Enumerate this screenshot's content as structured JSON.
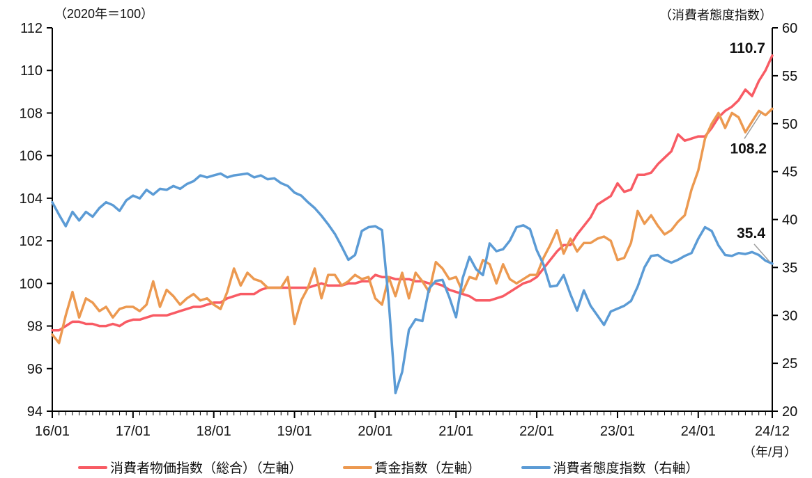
{
  "header": {
    "left_axis_unit_label": "（2020年＝100）",
    "right_axis_unit_label": "（消費者態度指数）",
    "x_axis_unit_label": "（年/月）"
  },
  "chart_data": {
    "type": "line",
    "title": "",
    "x_start": "2016/01",
    "x_end": "2024/12",
    "x_frequency": "monthly",
    "n_points": 108,
    "x_tick_labels": [
      "16/01",
      "17/01",
      "18/01",
      "19/01",
      "20/01",
      "21/01",
      "22/01",
      "23/01",
      "24/01",
      "24/12"
    ],
    "left_axis": {
      "label": "（2020年＝100）",
      "min": 94,
      "max": 112,
      "step": 2
    },
    "right_axis": {
      "label": "（消費者態度指数）",
      "min": 20,
      "max": 60,
      "step": 5
    },
    "grid": false,
    "legend_position": "bottom",
    "series": [
      {
        "key": "cpi",
        "name": "消費者物価指数（総合）（左軸）",
        "axis": "left",
        "color": "#f85b64",
        "end_label": "110.7",
        "values": [
          97.8,
          97.8,
          98.0,
          98.2,
          98.2,
          98.1,
          98.1,
          98.0,
          98.0,
          98.1,
          98.0,
          98.2,
          98.3,
          98.3,
          98.4,
          98.5,
          98.5,
          98.5,
          98.6,
          98.7,
          98.8,
          98.9,
          98.9,
          99.0,
          99.1,
          99.1,
          99.3,
          99.4,
          99.5,
          99.5,
          99.5,
          99.7,
          99.8,
          99.8,
          99.8,
          99.8,
          99.8,
          99.8,
          99.8,
          99.9,
          100.0,
          99.9,
          99.9,
          99.9,
          100.0,
          100.0,
          100.1,
          100.1,
          100.4,
          100.3,
          100.3,
          100.2,
          100.2,
          100.2,
          100.1,
          100.1,
          100.0,
          100.0,
          99.9,
          99.7,
          99.6,
          99.5,
          99.4,
          99.2,
          99.2,
          99.2,
          99.3,
          99.4,
          99.6,
          99.8,
          100.0,
          100.1,
          100.3,
          100.7,
          101.1,
          101.5,
          101.8,
          101.8,
          102.3,
          102.7,
          103.1,
          103.7,
          103.9,
          104.1,
          104.7,
          104.3,
          104.4,
          105.1,
          105.1,
          105.2,
          105.6,
          105.9,
          106.2,
          107.0,
          106.7,
          106.8,
          106.9,
          106.9,
          107.3,
          107.8,
          108.1,
          108.3,
          108.6,
          109.1,
          108.8,
          109.5,
          110.0,
          110.7
        ]
      },
      {
        "key": "wage",
        "name": "賃金指数（左軸）",
        "axis": "left",
        "color": "#ec9950",
        "end_label": "108.2",
        "values": [
          97.6,
          97.2,
          98.5,
          99.6,
          98.4,
          99.3,
          99.1,
          98.7,
          98.9,
          98.4,
          98.8,
          98.9,
          98.9,
          98.7,
          99.0,
          100.1,
          98.9,
          99.7,
          99.4,
          99.0,
          99.3,
          99.5,
          99.2,
          99.3,
          99.0,
          98.8,
          99.6,
          100.7,
          99.9,
          100.5,
          100.2,
          100.1,
          99.8,
          99.8,
          99.8,
          100.3,
          98.1,
          99.2,
          99.8,
          100.7,
          99.3,
          100.4,
          100.4,
          99.9,
          100.1,
          100.4,
          100.2,
          100.3,
          99.3,
          99.0,
          100.3,
          99.4,
          100.5,
          99.3,
          100.5,
          100.1,
          99.6,
          101.0,
          100.7,
          100.2,
          100.3,
          99.6,
          100.3,
          100.2,
          101.1,
          100.9,
          100.0,
          100.9,
          100.2,
          100.0,
          100.2,
          100.4,
          100.4,
          101.2,
          101.8,
          102.5,
          101.4,
          102.1,
          101.5,
          101.9,
          101.9,
          102.1,
          102.2,
          102.0,
          101.1,
          101.2,
          101.9,
          103.4,
          102.8,
          103.2,
          102.7,
          102.3,
          102.5,
          102.9,
          103.2,
          104.4,
          105.3,
          106.8,
          107.5,
          108.0,
          107.3,
          108.0,
          107.8,
          107.1,
          107.6,
          108.1,
          107.9,
          108.2
        ]
      },
      {
        "key": "sentiment",
        "name": "消費者態度指数（右軸）",
        "axis": "right",
        "color": "#5b9bd5",
        "end_label": "35.4",
        "values": [
          41.8,
          40.5,
          39.3,
          40.8,
          39.9,
          40.8,
          40.3,
          41.2,
          41.8,
          41.5,
          40.9,
          42.0,
          42.5,
          42.2,
          43.1,
          42.6,
          43.2,
          43.1,
          43.5,
          43.2,
          43.7,
          44.0,
          44.6,
          44.4,
          44.6,
          44.8,
          44.4,
          44.6,
          44.7,
          44.8,
          44.4,
          44.6,
          44.2,
          44.3,
          43.8,
          43.5,
          42.8,
          42.5,
          41.8,
          41.2,
          40.4,
          39.5,
          38.5,
          37.2,
          35.8,
          36.3,
          38.8,
          39.2,
          39.3,
          38.9,
          31.5,
          21.9,
          24.1,
          28.5,
          29.6,
          29.4,
          32.8,
          33.6,
          33.7,
          31.9,
          29.8,
          33.9,
          36.1,
          34.8,
          34.2,
          37.5,
          36.7,
          36.9,
          37.8,
          39.2,
          39.4,
          39.0,
          36.8,
          35.3,
          33.0,
          33.1,
          34.2,
          32.2,
          30.5,
          32.6,
          31.0,
          30.0,
          29.0,
          30.4,
          30.7,
          31.0,
          31.5,
          33.0,
          35.0,
          36.2,
          36.3,
          35.8,
          35.5,
          35.8,
          36.2,
          36.5,
          38.0,
          39.2,
          38.8,
          37.3,
          36.3,
          36.2,
          36.5,
          36.4,
          36.6,
          36.3,
          35.7,
          35.4
        ]
      }
    ],
    "annotations": [
      {
        "text": "110.7",
        "series": "cpi"
      },
      {
        "text": "108.2",
        "series": "wage"
      },
      {
        "text": "35.4",
        "series": "sentiment"
      }
    ],
    "leader_line_color": "#9e9e9e",
    "axis_color": "#000000"
  },
  "legend": {
    "items": [
      {
        "key": "cpi",
        "label": "消費者物価指数（総合）（左軸）",
        "color": "#f85b64"
      },
      {
        "key": "wage",
        "label": "賃金指数（左軸）",
        "color": "#ec9950"
      },
      {
        "key": "sentiment",
        "label": "消費者態度指数（右軸）",
        "color": "#5b9bd5"
      }
    ]
  }
}
